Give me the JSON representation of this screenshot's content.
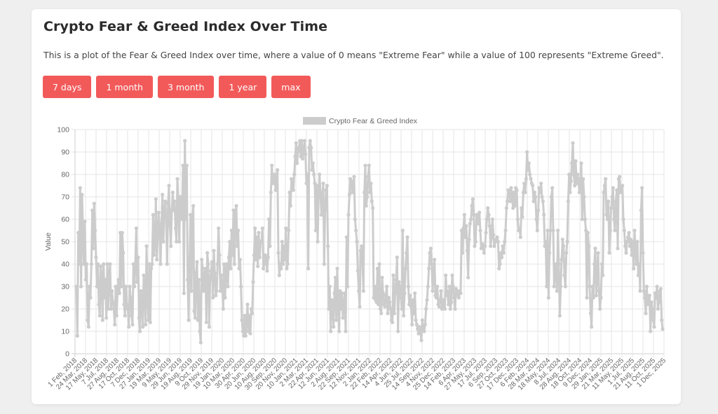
{
  "header": {
    "title": "Crypto Fear & Greed Index Over Time",
    "description": "This is a plot of the Fear & Greed Index over time, where a value of 0 means \"Extreme Fear\" while a value of 100 represents \"Extreme Greed\"."
  },
  "range_buttons": [
    {
      "label": "7 days"
    },
    {
      "label": "1 month"
    },
    {
      "label": "3 month"
    },
    {
      "label": "1 year"
    },
    {
      "label": "max"
    }
  ],
  "colors": {
    "button": "#f25a5a",
    "series": "#cccccc",
    "grid": "#e6e6e6",
    "axis_text": "#666666"
  },
  "chart_data": {
    "type": "line",
    "title": "",
    "legend": [
      "Crypto Fear & Greed Index"
    ],
    "legend_position": "top",
    "xlabel": "",
    "ylabel": "Value",
    "ylim": [
      0,
      100
    ],
    "yticks": [
      0,
      10,
      20,
      30,
      40,
      50,
      60,
      70,
      80,
      90,
      100
    ],
    "grid": true,
    "x_tick_labels": [
      "1 Feb, 2018",
      "24 Mar, 2018",
      "17 May, 2018",
      "7 Jul, 2018",
      "27 Aug, 2018",
      "17 Oct, 2018",
      "7 Dec, 2018",
      "27 Jan, 2019",
      "19 Mar, 2019",
      "9 May, 2019",
      "29 Jun, 2019",
      "19 Aug, 2019",
      "9 Oct, 2019",
      "29 Nov, 2019",
      "19 Jan, 2020",
      "10 Mar, 2020",
      "30 Apr, 2020",
      "20 Jun, 2020",
      "10 Aug, 2020",
      "30 Sep, 2020",
      "20 Nov, 2020",
      "10 Jan, 2021",
      "2 Mar, 2021",
      "22 Apr, 2021",
      "12 Jun, 2021",
      "2 Aug, 2021",
      "22 Sep, 2021",
      "12 Nov, 2021",
      "2 Jan, 2022",
      "22 Feb, 2022",
      "14 Apr, 2022",
      "4 Jun, 2022",
      "25 Jul, 2022",
      "14 Sep, 2022",
      "4 Nov, 2022",
      "25 Dec, 2022",
      "14 Feb, 2023",
      "6 Apr, 2023",
      "27 May, 2023",
      "17 Jul, 2023",
      "6 Sep, 2023",
      "27 Oct, 2023",
      "17 Dec, 2023",
      "6 Feb, 2024",
      "28 Mar, 2024",
      "18 May, 2024",
      "8 Jul, 2024",
      "28 Aug, 2024",
      "18 Oct, 2024",
      "9 Dec, 2024",
      "29 Jan, 2025",
      "21 Mar, 2025",
      "11 May, 2025",
      "1 Jul, 2025",
      "21 Aug, 2025",
      "11 Oct, 2025",
      "1 Dec, 2025"
    ],
    "series": [
      {
        "name": "Crypto Fear & Greed Index",
        "values": [
          30,
          8,
          54,
          40,
          74,
          30,
          71,
          55,
          40,
          59,
          33,
          40,
          15,
          12,
          30,
          25,
          40,
          64,
          47,
          67,
          55,
          43,
          30,
          40,
          22,
          17,
          39,
          35,
          15,
          40,
          25,
          33,
          16,
          40,
          20,
          35,
          40,
          20,
          28,
          23,
          20,
          13,
          30,
          17,
          28,
          33,
          27,
          54,
          30,
          54,
          45,
          22,
          17,
          30,
          22,
          20,
          12,
          30,
          25,
          17,
          13,
          40,
          30,
          40,
          56,
          32,
          43,
          16,
          10,
          28,
          24,
          12,
          35,
          30,
          13,
          48,
          27,
          15,
          40,
          14,
          38,
          40,
          62,
          44,
          48,
          69,
          42,
          52,
          63,
          55,
          40,
          58,
          71,
          50,
          63,
          68,
          60,
          40,
          67,
          75,
          57,
          48,
          64,
          72,
          64,
          68,
          56,
          50,
          78,
          68,
          50,
          70,
          62,
          60,
          84,
          27,
          95,
          60,
          84,
          33,
          15,
          40,
          62,
          28,
          61,
          66,
          19,
          16,
          36,
          41,
          15,
          33,
          10,
          5,
          42,
          38,
          28,
          35,
          38,
          14,
          45,
          40,
          12,
          33,
          37,
          41,
          25,
          46,
          36,
          26,
          28,
          40,
          56,
          44,
          28,
          35,
          30,
          20,
          40,
          25,
          38,
          40,
          30,
          43,
          50,
          38,
          55,
          44,
          64,
          40,
          62,
          66,
          48,
          55,
          38,
          42,
          30,
          15,
          10,
          8,
          17,
          8,
          14,
          22,
          10,
          17,
          9,
          20,
          18,
          32,
          44,
          56,
          42,
          52,
          39,
          54,
          43,
          50,
          50,
          56,
          38,
          40,
          44,
          42,
          37,
          43,
          60,
          48,
          72,
          84,
          76,
          78,
          80,
          73,
          80,
          82,
          45,
          35,
          40,
          38,
          50,
          40,
          48,
          42,
          56,
          38,
          40,
          55,
          72,
          66,
          78,
          74,
          73,
          80,
          88,
          94,
          85,
          90,
          92,
          95,
          88,
          95,
          87,
          90,
          95,
          89,
          76,
          80,
          38,
          92,
          95,
          92,
          82,
          85,
          80,
          76,
          55,
          75,
          50,
          70,
          80,
          72,
          62,
          70,
          76,
          40,
          64,
          73,
          75,
          48,
          20,
          30,
          10,
          24,
          22,
          12,
          27,
          34,
          15,
          38,
          22,
          10,
          28,
          20,
          27,
          16,
          22,
          27,
          10,
          52,
          30,
          62,
          71,
          78,
          77,
          72,
          75,
          79,
          60,
          55,
          50,
          37,
          28,
          21,
          46,
          48,
          40,
          28,
          72,
          84,
          66,
          70,
          79,
          84,
          72,
          76,
          68,
          65,
          25,
          30,
          24,
          23,
          38,
          22,
          40,
          20,
          18,
          34,
          27,
          22,
          21,
          26,
          30,
          18,
          25,
          23,
          20,
          15,
          14,
          35,
          18,
          27,
          33,
          43,
          10,
          32,
          30,
          25,
          20,
          55,
          17,
          27,
          38,
          45,
          52,
          30,
          22,
          26,
          21,
          13,
          24,
          18,
          27,
          15,
          13,
          11,
          9,
          12,
          10,
          6,
          15,
          11,
          10,
          13,
          20,
          24,
          30,
          38,
          45,
          47,
          40,
          28,
          35,
          42,
          26,
          25,
          30,
          22,
          21,
          24,
          28,
          20,
          22,
          24,
          20,
          35,
          28,
          26,
          22,
          30,
          20,
          23,
          35,
          30,
          25,
          20,
          29,
          28,
          26,
          25,
          28,
          27,
          55,
          45,
          56,
          62,
          52,
          57,
          46,
          34,
          51,
          58,
          60,
          66,
          69,
          62,
          48,
          50,
          62,
          60,
          58,
          63,
          55,
          47,
          49,
          48,
          45,
          48,
          54,
          60,
          65,
          62,
          57,
          48,
          52,
          60,
          53,
          48,
          50,
          51,
          52,
          50,
          38,
          40,
          45,
          43,
          48,
          45,
          50,
          55,
          65,
          68,
          73,
          72,
          68,
          74,
          70,
          65,
          72,
          66,
          74,
          73,
          60,
          55,
          56,
          52,
          65,
          61,
          72,
          76,
          72,
          78,
          90,
          82,
          85,
          80,
          78,
          76,
          75,
          68,
          72,
          70,
          60,
          55,
          64,
          74,
          72,
          76,
          70,
          68,
          62,
          48,
          50,
          30,
          55,
          25,
          45,
          55,
          70,
          74,
          55,
          30,
          37,
          40,
          28,
          55,
          40,
          17,
          30,
          42,
          51,
          48,
          35,
          30,
          45,
          50,
          68,
          80,
          72,
          77,
          85,
          94,
          80,
          75,
          86,
          76,
          80,
          77,
          72,
          78,
          85,
          60,
          78,
          70,
          60,
          55,
          25,
          54,
          48,
          30,
          18,
          12,
          30,
          25,
          40,
          47,
          26,
          35,
          45,
          28,
          20,
          25,
          40,
          35,
          72,
          75,
          78,
          62,
          60,
          68,
          45,
          55,
          65,
          70,
          74,
          60,
          55,
          68,
          73,
          47,
          78,
          79,
          72,
          74,
          75,
          60,
          55,
          48,
          45,
          50,
          52,
          54,
          48,
          51,
          44,
          50,
          38,
          55,
          46,
          40,
          50,
          35,
          40,
          28,
          64,
          74,
          45,
          28,
          25,
          18,
          30,
          22,
          25,
          26,
          10,
          23,
          20,
          15,
          12,
          27,
          25,
          30,
          20,
          23,
          28,
          29,
          15,
          11
        ]
      }
    ]
  }
}
